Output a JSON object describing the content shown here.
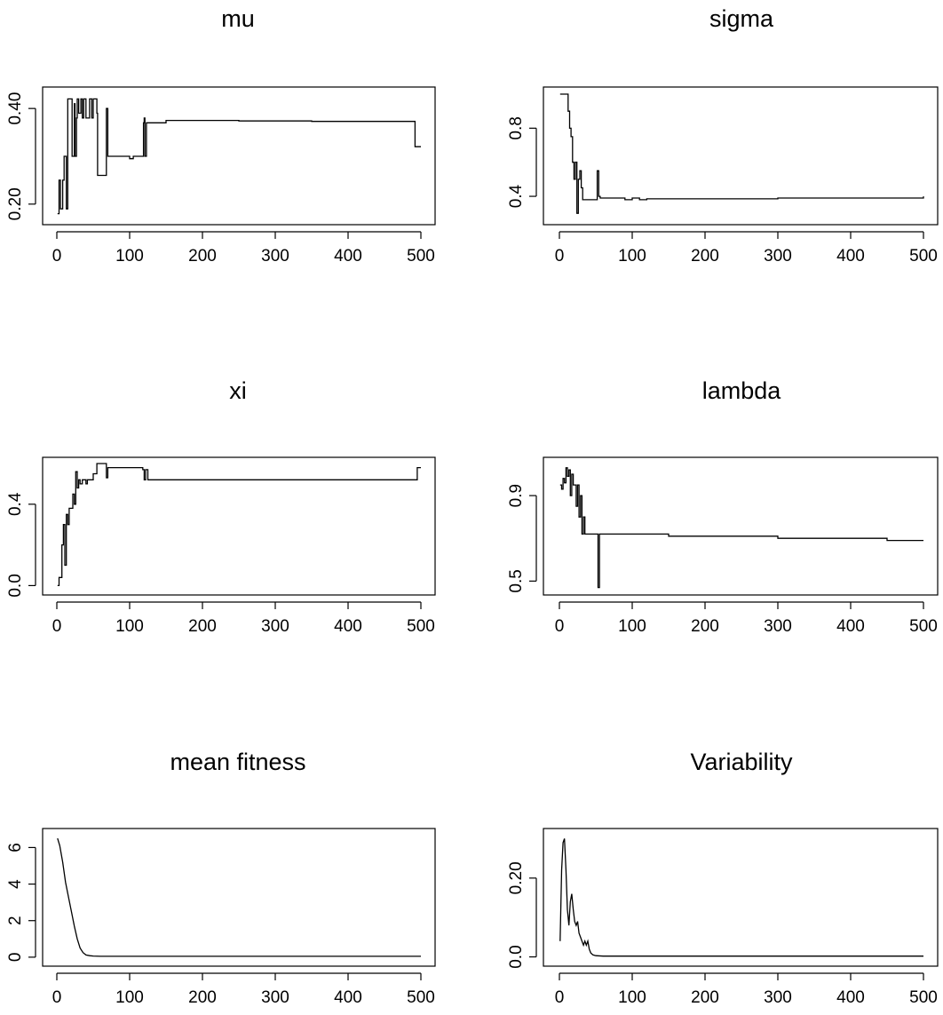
{
  "chart_data": [
    {
      "type": "line",
      "title": "mu",
      "xlabel": "",
      "ylabel": "",
      "xlim": [
        0,
        500
      ],
      "ylim": [
        0.17,
        0.43
      ],
      "xticks": [
        0,
        100,
        200,
        300,
        400,
        500
      ],
      "xtick_labels": [
        "0",
        "100",
        "200",
        "300",
        "400",
        "500"
      ],
      "yticks": [
        0.2,
        0.4
      ],
      "ytick_labels": [
        "0.20",
        "0.40"
      ],
      "grid": false,
      "series": [
        {
          "step": true,
          "x": [
            1,
            3,
            5,
            8,
            10,
            13,
            15,
            18,
            21,
            24,
            25,
            27,
            28,
            30,
            33,
            35,
            37,
            40,
            43,
            45,
            48,
            50,
            52,
            55,
            56,
            58,
            62,
            66,
            68,
            70,
            100,
            105,
            118,
            119,
            120,
            121,
            123,
            150,
            200,
            250,
            300,
            350,
            400,
            450,
            480,
            490,
            492,
            500
          ],
          "y": [
            0.18,
            0.25,
            0.19,
            0.25,
            0.3,
            0.19,
            0.42,
            0.42,
            0.3,
            0.41,
            0.3,
            0.38,
            0.42,
            0.39,
            0.42,
            0.38,
            0.42,
            0.38,
            0.38,
            0.42,
            0.38,
            0.42,
            0.42,
            0.39,
            0.26,
            0.26,
            0.26,
            0.26,
            0.4,
            0.3,
            0.295,
            0.3,
            0.3,
            0.37,
            0.38,
            0.3,
            0.37,
            0.375,
            0.375,
            0.374,
            0.374,
            0.373,
            0.373,
            0.373,
            0.373,
            0.373,
            0.32,
            0.32
          ]
        }
      ]
    },
    {
      "type": "line",
      "title": "sigma",
      "xlabel": "",
      "ylabel": "",
      "xlim": [
        0,
        500
      ],
      "ylim": [
        0.27,
        1.0
      ],
      "xticks": [
        0,
        100,
        200,
        300,
        400,
        500
      ],
      "xtick_labels": [
        "0",
        "100",
        "200",
        "300",
        "400",
        "500"
      ],
      "yticks": [
        0.4,
        0.8
      ],
      "ytick_labels": [
        "0.4",
        "0.8"
      ],
      "grid": false,
      "series": [
        {
          "step": true,
          "x": [
            1,
            10,
            12,
            14,
            16,
            18,
            20,
            22,
            24,
            26,
            28,
            30,
            32,
            34,
            50,
            52,
            54,
            56,
            80,
            90,
            100,
            110,
            120,
            200,
            300,
            400,
            500
          ],
          "y": [
            1.0,
            1.0,
            0.9,
            0.8,
            0.75,
            0.6,
            0.5,
            0.6,
            0.3,
            0.5,
            0.55,
            0.45,
            0.38,
            0.38,
            0.38,
            0.55,
            0.4,
            0.39,
            0.39,
            0.38,
            0.39,
            0.38,
            0.385,
            0.385,
            0.39,
            0.39,
            0.4
          ]
        }
      ]
    },
    {
      "type": "line",
      "title": "xi",
      "xlabel": "",
      "ylabel": "",
      "xlim": [
        0,
        500
      ],
      "ylim": [
        -0.02,
        0.6
      ],
      "xticks": [
        0,
        100,
        200,
        300,
        400,
        500
      ],
      "xtick_labels": [
        "0",
        "100",
        "200",
        "300",
        "400",
        "500"
      ],
      "yticks": [
        0.0,
        0.4
      ],
      "ytick_labels": [
        "0.0",
        "0.4"
      ],
      "grid": false,
      "series": [
        {
          "step": true,
          "x": [
            1,
            3,
            5,
            7,
            9,
            11,
            13,
            15,
            17,
            20,
            22,
            24,
            26,
            28,
            30,
            32,
            35,
            40,
            42,
            45,
            50,
            55,
            58,
            60,
            65,
            68,
            70,
            75,
            100,
            110,
            118,
            120,
            122,
            125,
            200,
            300,
            400,
            480,
            490,
            492,
            495,
            500
          ],
          "y": [
            0.0,
            0.04,
            0.04,
            0.2,
            0.3,
            0.1,
            0.35,
            0.3,
            0.38,
            0.38,
            0.45,
            0.4,
            0.56,
            0.48,
            0.52,
            0.5,
            0.52,
            0.5,
            0.52,
            0.52,
            0.55,
            0.6,
            0.6,
            0.6,
            0.6,
            0.53,
            0.58,
            0.58,
            0.58,
            0.58,
            0.57,
            0.52,
            0.57,
            0.52,
            0.52,
            0.52,
            0.52,
            0.52,
            0.52,
            0.52,
            0.58,
            0.58
          ]
        }
      ]
    },
    {
      "type": "line",
      "title": "lambda",
      "xlabel": "",
      "ylabel": "",
      "xlim": [
        0,
        500
      ],
      "ylim": [
        0.46,
        1.05
      ],
      "xticks": [
        0,
        100,
        200,
        300,
        400,
        500
      ],
      "xtick_labels": [
        "0",
        "100",
        "200",
        "300",
        "400",
        "500"
      ],
      "yticks": [
        0.5,
        0.9
      ],
      "ytick_labels": [
        "0.5",
        "0.9"
      ],
      "grid": false,
      "series": [
        {
          "step": true,
          "x": [
            1,
            3,
            5,
            7,
            9,
            11,
            13,
            15,
            17,
            19,
            21,
            23,
            25,
            27,
            29,
            31,
            33,
            35,
            38,
            40,
            50,
            53,
            55,
            57,
            60,
            80,
            100,
            150,
            200,
            300,
            350,
            400,
            450,
            500
          ],
          "y": [
            0.95,
            0.93,
            0.98,
            0.96,
            1.03,
            0.99,
            1.02,
            0.9,
            1.0,
            0.95,
            0.95,
            0.85,
            0.95,
            0.8,
            0.9,
            0.72,
            0.8,
            0.72,
            0.72,
            0.72,
            0.72,
            0.47,
            0.72,
            0.72,
            0.72,
            0.72,
            0.72,
            0.71,
            0.71,
            0.7,
            0.7,
            0.7,
            0.69,
            0.69
          ]
        }
      ]
    },
    {
      "type": "line",
      "title": "mean fitness",
      "xlabel": "",
      "ylabel": "",
      "xlim": [
        0,
        500
      ],
      "ylim": [
        -0.2,
        6.7
      ],
      "xticks": [
        0,
        100,
        200,
        300,
        400,
        500
      ],
      "xtick_labels": [
        "0",
        "100",
        "200",
        "300",
        "400",
        "500"
      ],
      "yticks": [
        0,
        2,
        4,
        6
      ],
      "ytick_labels": [
        "0",
        "2",
        "4",
        "6"
      ],
      "grid": false,
      "series": [
        {
          "step": false,
          "x": [
            1,
            4,
            8,
            12,
            16,
            20,
            24,
            28,
            32,
            36,
            40,
            45,
            50,
            60,
            80,
            100,
            150,
            200,
            300,
            400,
            500
          ],
          "y": [
            6.5,
            6.1,
            5.2,
            4.1,
            3.3,
            2.5,
            1.7,
            1.0,
            0.5,
            0.25,
            0.12,
            0.08,
            0.06,
            0.05,
            0.05,
            0.05,
            0.05,
            0.05,
            0.05,
            0.05,
            0.05
          ]
        }
      ]
    },
    {
      "type": "line",
      "title": "Variability",
      "xlabel": "",
      "ylabel": "",
      "xlim": [
        0,
        500
      ],
      "ylim": [
        -0.01,
        0.31
      ],
      "xticks": [
        0,
        100,
        200,
        300,
        400,
        500
      ],
      "xtick_labels": [
        "0",
        "100",
        "200",
        "300",
        "400",
        "500"
      ],
      "yticks": [
        0.0,
        0.2
      ],
      "ytick_labels": [
        "0.0",
        "0.20"
      ],
      "grid": false,
      "series": [
        {
          "step": false,
          "x": [
            1,
            3,
            5,
            7,
            9,
            11,
            13,
            15,
            17,
            19,
            21,
            23,
            25,
            27,
            29,
            31,
            33,
            35,
            37,
            39,
            41,
            43,
            46,
            50,
            60,
            100,
            200,
            300,
            400,
            500
          ],
          "y": [
            0.04,
            0.22,
            0.29,
            0.3,
            0.22,
            0.12,
            0.08,
            0.14,
            0.16,
            0.12,
            0.09,
            0.08,
            0.09,
            0.06,
            0.05,
            0.04,
            0.03,
            0.04,
            0.03,
            0.04,
            0.02,
            0.01,
            0.005,
            0.003,
            0.002,
            0.002,
            0.002,
            0.002,
            0.002,
            0.002
          ]
        }
      ]
    }
  ]
}
